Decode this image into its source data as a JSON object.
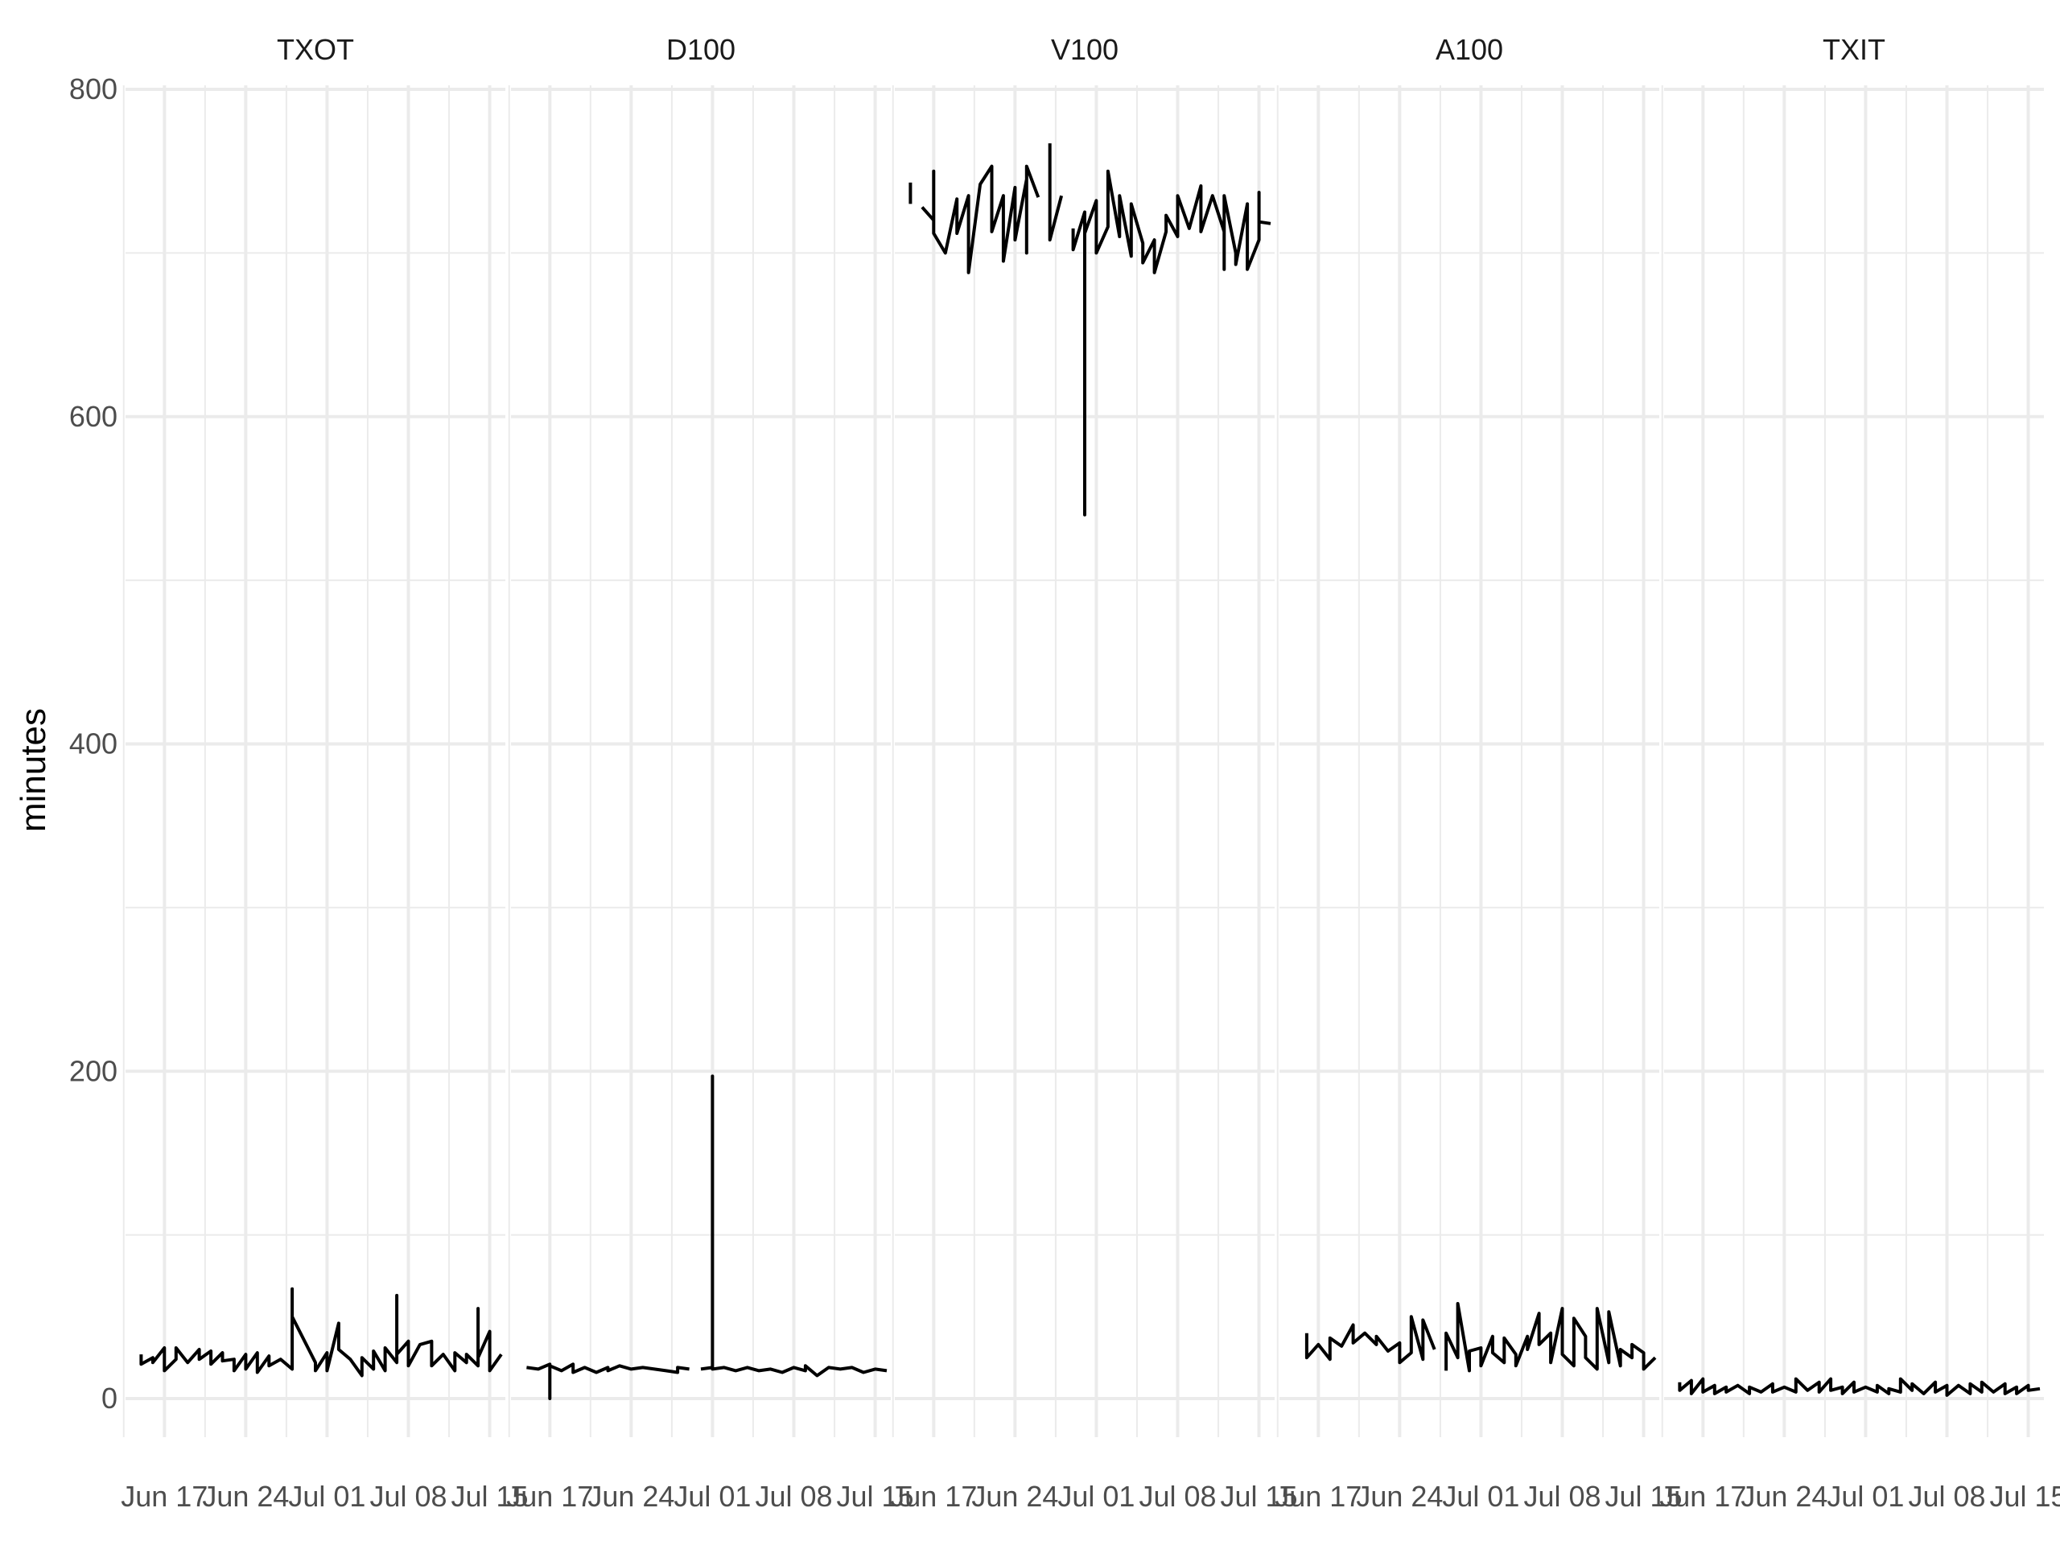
{
  "chart_data": {
    "type": "line",
    "title": "",
    "xlabel": "",
    "ylabel": "minutes",
    "ylim": [
      -30,
      800
    ],
    "xlim": [
      "2024-06-14",
      "2024-07-16"
    ],
    "y_ticks": [
      0,
      200,
      400,
      600,
      800
    ],
    "x_ticks": [
      {
        "date": "2024-06-17",
        "label": "Jun 17"
      },
      {
        "date": "2024-06-24",
        "label": "Jun 24"
      },
      {
        "date": "2024-07-01",
        "label": "Jul 01"
      },
      {
        "date": "2024-07-08",
        "label": "Jul 08"
      },
      {
        "date": "2024-07-15",
        "label": "Jul 15"
      }
    ],
    "grid": true,
    "line_color": "#000000",
    "grid_color": "#ebebeb",
    "panels": [
      {
        "label": "TXOT",
        "points": [
          [
            "2024-06-15",
            27
          ],
          [
            "2024-06-15",
            21
          ],
          [
            "2024-06-16",
            25
          ],
          [
            "2024-06-16",
            22
          ],
          [
            "2024-06-17",
            31
          ],
          [
            "2024-06-17",
            17
          ],
          [
            "2024-06-18",
            24
          ],
          [
            "2024-06-18",
            31
          ],
          [
            "2024-06-19",
            22
          ],
          [
            "2024-06-20",
            30
          ],
          [
            "2024-06-20",
            24
          ],
          [
            "2024-06-21",
            29
          ],
          [
            "2024-06-21",
            21
          ],
          [
            "2024-06-22",
            28
          ],
          [
            "2024-06-22",
            23
          ],
          [
            "2024-06-23",
            24
          ],
          [
            "2024-06-23",
            17
          ],
          [
            "2024-06-24",
            27
          ],
          [
            "2024-06-24",
            18
          ],
          [
            "2024-06-25",
            28
          ],
          [
            "2024-06-25",
            16
          ],
          [
            "2024-06-26",
            26
          ],
          [
            "2024-06-26",
            20
          ],
          [
            "2024-06-27",
            24
          ],
          [
            "2024-06-28",
            18
          ],
          [
            "2024-06-28",
            67
          ],
          [
            "2024-06-28",
            50
          ],
          [
            "2024-06-30",
            22
          ],
          [
            "2024-06-30",
            17
          ],
          [
            "2024-07-01",
            28
          ],
          [
            "2024-07-01",
            17
          ],
          [
            "2024-07-02",
            46
          ],
          [
            "2024-07-02",
            30
          ],
          [
            "2024-07-03",
            24
          ],
          [
            "2024-07-04",
            14
          ],
          [
            "2024-07-04",
            25
          ],
          [
            "2024-07-05",
            18
          ],
          [
            "2024-07-05",
            29
          ],
          [
            "2024-07-06",
            17
          ],
          [
            "2024-07-06",
            31
          ],
          [
            "2024-07-07",
            22
          ],
          [
            "2024-07-07",
            63
          ],
          [
            "2024-07-07",
            27
          ],
          [
            "2024-07-08",
            35
          ],
          [
            "2024-07-08",
            20
          ],
          [
            "2024-07-09",
            33
          ],
          [
            "2024-07-10",
            35
          ],
          [
            "2024-07-10",
            20
          ],
          [
            "2024-07-11",
            27
          ],
          [
            "2024-07-12",
            17
          ],
          [
            "2024-07-12",
            28
          ],
          [
            "2024-07-13",
            22
          ],
          [
            "2024-07-13",
            27
          ],
          [
            "2024-07-14",
            20
          ],
          [
            "2024-07-14",
            55
          ],
          [
            "2024-07-14",
            25
          ],
          [
            "2024-07-15",
            41
          ],
          [
            "2024-07-15",
            17
          ],
          [
            "2024-07-16",
            27
          ]
        ]
      },
      {
        "label": "D100",
        "points": [
          [
            "2024-06-15",
            19
          ],
          [
            "2024-06-16",
            18
          ],
          [
            "2024-06-17",
            21
          ],
          [
            "2024-06-17",
            0
          ],
          [
            "2024-06-17",
            20
          ],
          [
            "2024-06-18",
            17
          ],
          [
            "2024-06-19",
            21
          ],
          [
            "2024-06-19",
            16
          ],
          [
            "2024-06-20",
            19
          ],
          [
            "2024-06-21",
            16
          ],
          [
            "2024-06-22",
            19
          ],
          [
            "2024-06-22",
            17
          ],
          [
            "2024-06-23",
            20
          ],
          [
            "2024-06-24",
            18
          ],
          [
            "2024-06-25",
            19
          ],
          [
            "2024-06-26",
            18
          ],
          [
            "2024-06-27",
            17
          ],
          [
            "2024-06-28",
            16
          ],
          [
            "2024-06-28",
            19
          ],
          [
            "2024-06-29",
            18
          ],
          [
            null,
            null
          ],
          [
            "2024-06-30",
            18
          ],
          [
            "2024-07-01",
            19
          ],
          [
            "2024-07-01",
            197
          ],
          [
            "2024-07-01",
            18
          ],
          [
            "2024-07-02",
            19
          ],
          [
            "2024-07-03",
            17
          ],
          [
            "2024-07-04",
            19
          ],
          [
            "2024-07-05",
            17
          ],
          [
            "2024-07-06",
            18
          ],
          [
            "2024-07-07",
            16
          ],
          [
            "2024-07-08",
            19
          ],
          [
            "2024-07-09",
            17
          ],
          [
            "2024-07-09",
            20
          ],
          [
            "2024-07-10",
            14
          ],
          [
            "2024-07-11",
            19
          ],
          [
            "2024-07-12",
            18
          ],
          [
            "2024-07-13",
            19
          ],
          [
            "2024-07-14",
            16
          ],
          [
            "2024-07-15",
            18
          ],
          [
            "2024-07-16",
            17
          ]
        ]
      },
      {
        "label": "V100",
        "points": [
          [
            "2024-06-15",
            743
          ],
          [
            "2024-06-15",
            730
          ],
          [
            null,
            null
          ],
          [
            "2024-06-16",
            728
          ],
          [
            "2024-06-17",
            720
          ],
          [
            "2024-06-17",
            750
          ],
          [
            "2024-06-17",
            712
          ],
          [
            "2024-06-18",
            700
          ],
          [
            "2024-06-19",
            733
          ],
          [
            "2024-06-19",
            712
          ],
          [
            "2024-06-20",
            735
          ],
          [
            "2024-06-20",
            688
          ],
          [
            "2024-06-21",
            742
          ],
          [
            "2024-06-22",
            753
          ],
          [
            "2024-06-22",
            713
          ],
          [
            "2024-06-23",
            735
          ],
          [
            "2024-06-23",
            695
          ],
          [
            "2024-06-24",
            740
          ],
          [
            "2024-06-24",
            708
          ],
          [
            "2024-06-25",
            745
          ],
          [
            "2024-06-25",
            700
          ],
          [
            "2024-06-25",
            753
          ],
          [
            "2024-06-26",
            734
          ],
          [
            null,
            null
          ],
          [
            "2024-06-27",
            767
          ],
          [
            "2024-06-27",
            708
          ],
          [
            "2024-06-28",
            735
          ],
          [
            null,
            null
          ],
          [
            "2024-06-29",
            715
          ],
          [
            "2024-06-29",
            702
          ],
          [
            "2024-06-30",
            725
          ],
          [
            "2024-06-30",
            540
          ],
          [
            "2024-06-30",
            712
          ],
          [
            "2024-07-01",
            732
          ],
          [
            "2024-07-01",
            700
          ],
          [
            "2024-07-02",
            716
          ],
          [
            "2024-07-02",
            750
          ],
          [
            "2024-07-03",
            710
          ],
          [
            "2024-07-03",
            735
          ],
          [
            "2024-07-04",
            698
          ],
          [
            "2024-07-04",
            730
          ],
          [
            "2024-07-05",
            706
          ],
          [
            "2024-07-05",
            694
          ],
          [
            "2024-07-06",
            708
          ],
          [
            "2024-07-06",
            688
          ],
          [
            "2024-07-07",
            713
          ],
          [
            "2024-07-07",
            723
          ],
          [
            "2024-07-08",
            710
          ],
          [
            "2024-07-08",
            735
          ],
          [
            "2024-07-09",
            715
          ],
          [
            "2024-07-10",
            741
          ],
          [
            "2024-07-10",
            713
          ],
          [
            "2024-07-11",
            735
          ],
          [
            "2024-07-12",
            713
          ],
          [
            "2024-07-12",
            690
          ],
          [
            "2024-07-12",
            735
          ],
          [
            "2024-07-13",
            700
          ],
          [
            "2024-07-13",
            693
          ],
          [
            "2024-07-14",
            730
          ],
          [
            "2024-07-14",
            690
          ],
          [
            "2024-07-15",
            708
          ],
          [
            "2024-07-15",
            737
          ],
          [
            "2024-07-15",
            719
          ],
          [
            "2024-07-16",
            718
          ]
        ]
      },
      {
        "label": "A100",
        "points": [
          [
            "2024-06-15",
            32
          ],
          [
            null,
            null
          ],
          [
            "2024-06-16",
            40
          ],
          [
            "2024-06-16",
            25
          ],
          [
            "2024-06-17",
            33
          ],
          [
            "2024-06-18",
            24
          ],
          [
            "2024-06-18",
            37
          ],
          [
            "2024-06-19",
            32
          ],
          [
            "2024-06-20",
            45
          ],
          [
            "2024-06-20",
            34
          ],
          [
            "2024-06-21",
            40
          ],
          [
            "2024-06-22",
            33
          ],
          [
            "2024-06-22",
            38
          ],
          [
            "2024-06-23",
            29
          ],
          [
            "2024-06-24",
            34
          ],
          [
            "2024-06-24",
            22
          ],
          [
            "2024-06-25",
            28
          ],
          [
            "2024-06-25",
            50
          ],
          [
            "2024-06-26",
            24
          ],
          [
            "2024-06-26",
            48
          ],
          [
            "2024-06-27",
            30
          ],
          [
            null,
            null
          ],
          [
            "2024-06-28",
            17
          ],
          [
            "2024-06-28",
            40
          ],
          [
            "2024-06-29",
            25
          ],
          [
            "2024-06-29",
            58
          ],
          [
            "2024-06-30",
            17
          ],
          [
            "2024-06-30",
            29
          ],
          [
            "2024-07-01",
            31
          ],
          [
            "2024-07-01",
            20
          ],
          [
            "2024-07-02",
            38
          ],
          [
            "2024-07-02",
            28
          ],
          [
            "2024-07-03",
            22
          ],
          [
            "2024-07-03",
            37
          ],
          [
            "2024-07-04",
            27
          ],
          [
            "2024-07-04",
            20
          ],
          [
            "2024-07-05",
            38
          ],
          [
            "2024-07-05",
            30
          ],
          [
            "2024-07-06",
            52
          ],
          [
            "2024-07-06",
            33
          ],
          [
            "2024-07-07",
            40
          ],
          [
            "2024-07-07",
            22
          ],
          [
            "2024-07-08",
            55
          ],
          [
            "2024-07-08",
            27
          ],
          [
            "2024-07-09",
            20
          ],
          [
            "2024-07-09",
            49
          ],
          [
            "2024-07-10",
            38
          ],
          [
            "2024-07-10",
            25
          ],
          [
            "2024-07-11",
            18
          ],
          [
            "2024-07-11",
            55
          ],
          [
            "2024-07-12",
            22
          ],
          [
            "2024-07-12",
            53
          ],
          [
            "2024-07-13",
            20
          ],
          [
            "2024-07-13",
            30
          ],
          [
            "2024-07-14",
            25
          ],
          [
            "2024-07-14",
            33
          ],
          [
            "2024-07-15",
            28
          ],
          [
            "2024-07-15",
            18
          ],
          [
            "2024-07-16",
            25
          ]
        ]
      },
      {
        "label": "TXIT",
        "points": [
          [
            "2024-06-15",
            10
          ],
          [
            "2024-06-15",
            5
          ],
          [
            "2024-06-16",
            11
          ],
          [
            "2024-06-16",
            3
          ],
          [
            "2024-06-17",
            12
          ],
          [
            "2024-06-17",
            4
          ],
          [
            "2024-06-18",
            8
          ],
          [
            "2024-06-18",
            3
          ],
          [
            "2024-06-19",
            7
          ],
          [
            "2024-06-19",
            4
          ],
          [
            "2024-06-20",
            8
          ],
          [
            "2024-06-21",
            3
          ],
          [
            "2024-06-21",
            7
          ],
          [
            "2024-06-22",
            4
          ],
          [
            "2024-06-23",
            9
          ],
          [
            "2024-06-23",
            4
          ],
          [
            "2024-06-24",
            7
          ],
          [
            "2024-06-25",
            4
          ],
          [
            "2024-06-25",
            12
          ],
          [
            "2024-06-26",
            5
          ],
          [
            "2024-06-27",
            10
          ],
          [
            "2024-06-27",
            4
          ],
          [
            "2024-06-28",
            12
          ],
          [
            "2024-06-28",
            5
          ],
          [
            "2024-06-29",
            7
          ],
          [
            "2024-06-29",
            3
          ],
          [
            "2024-06-30",
            10
          ],
          [
            "2024-06-30",
            4
          ],
          [
            "2024-07-01",
            7
          ],
          [
            "2024-07-02",
            4
          ],
          [
            "2024-07-02",
            8
          ],
          [
            "2024-07-03",
            3
          ],
          [
            "2024-07-03",
            6
          ],
          [
            "2024-07-04",
            4
          ],
          [
            "2024-07-04",
            12
          ],
          [
            "2024-07-05",
            5
          ],
          [
            "2024-07-05",
            9
          ],
          [
            "2024-07-06",
            3
          ],
          [
            "2024-07-07",
            10
          ],
          [
            "2024-07-07",
            4
          ],
          [
            "2024-07-08",
            8
          ],
          [
            "2024-07-08",
            2
          ],
          [
            "2024-07-09",
            8
          ],
          [
            "2024-07-10",
            3
          ],
          [
            "2024-07-10",
            9
          ],
          [
            "2024-07-11",
            4
          ],
          [
            "2024-07-11",
            10
          ],
          [
            "2024-07-12",
            4
          ],
          [
            "2024-07-13",
            9
          ],
          [
            "2024-07-13",
            3
          ],
          [
            "2024-07-14",
            7
          ],
          [
            "2024-07-14",
            3
          ],
          [
            "2024-07-15",
            8
          ],
          [
            "2024-07-15",
            5
          ],
          [
            "2024-07-16",
            6
          ]
        ]
      }
    ]
  }
}
